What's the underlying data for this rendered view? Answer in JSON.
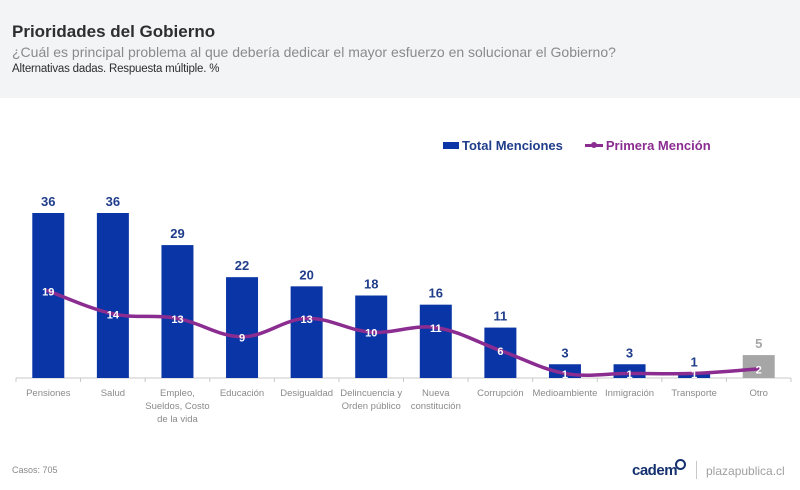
{
  "header": {
    "title": "Prioridades del Gobierno",
    "subtitle": "¿Cuál es principal problema al que debería dedicar el mayor esfuerzo en solucionar el Gobierno?",
    "note": "Alternativas dadas. Respuesta múltiple. %"
  },
  "legend": {
    "bar_label": "Total Menciones",
    "line_label": "Primera Mención"
  },
  "colors": {
    "bar": "#0a35a6",
    "bar_other": "#a6a6a6",
    "line": "#8b2c91",
    "bar_label": "#1f3d8a",
    "bar_label_other": "#a6a6a6",
    "line_label": "#ffffff",
    "axis_label": "#8a8a8a"
  },
  "chart_data": {
    "type": "bar",
    "title": "Prioridades del Gobierno",
    "xlabel": "",
    "ylabel": "%",
    "ylim": [
      0,
      36
    ],
    "grid": false,
    "legend_position": "top-right",
    "categories": [
      [
        "Pensiones"
      ],
      [
        "Salud"
      ],
      [
        "Empleo,",
        "Sueldos, Costo",
        "de la vida"
      ],
      [
        "Educación"
      ],
      [
        "Desigualdad"
      ],
      [
        "Delincuencia y",
        "Orden público"
      ],
      [
        "Nueva",
        "constitución"
      ],
      [
        "Corrupción"
      ],
      [
        "Medioambiente"
      ],
      [
        "Inmigración"
      ],
      [
        "Transporte"
      ],
      [
        "Otro"
      ]
    ],
    "series": [
      {
        "name": "Total Menciones",
        "type": "bar",
        "values": [
          36,
          36,
          29,
          22,
          20,
          18,
          16,
          11,
          3,
          3,
          1,
          5
        ]
      },
      {
        "name": "Primera Mención",
        "type": "line",
        "values": [
          19,
          14,
          13,
          9,
          13,
          10,
          11,
          6,
          1,
          1,
          1,
          2
        ]
      }
    ]
  },
  "footer": {
    "cases": "Casos: 705",
    "logo": "cadem",
    "site": "plazapublica.cl"
  }
}
